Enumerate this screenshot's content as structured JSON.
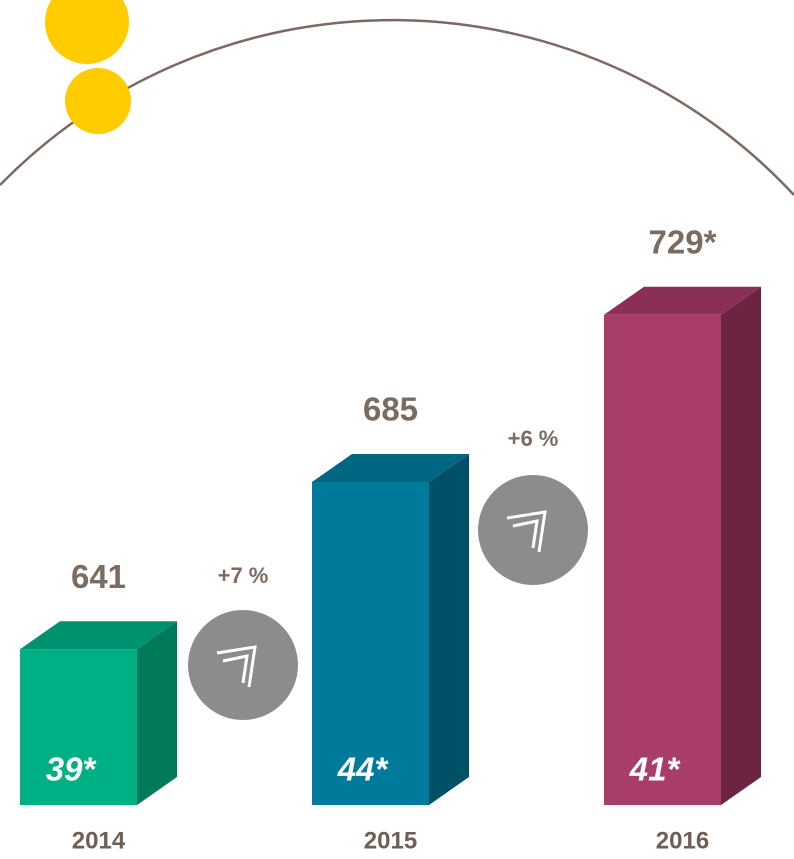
{
  "chart_data": {
    "type": "bar3d",
    "categories": [
      "2014",
      "2015",
      "2016"
    ],
    "values": [
      641,
      685,
      729
    ],
    "value_labels": [
      "641",
      "685",
      "729*"
    ],
    "inner_labels": [
      "39*",
      "44*",
      "41*"
    ],
    "colors": [
      "#00b085",
      "#007a9a",
      "#a93d69"
    ],
    "side_colors": [
      "#007a5a",
      "#005068",
      "#6b2442"
    ],
    "top_colors": [
      "#00916e",
      "#006682",
      "#8a2f55"
    ],
    "annotations": [
      "+7 %",
      "+6 %"
    ],
    "ylim": [
      600,
      740
    ]
  }
}
